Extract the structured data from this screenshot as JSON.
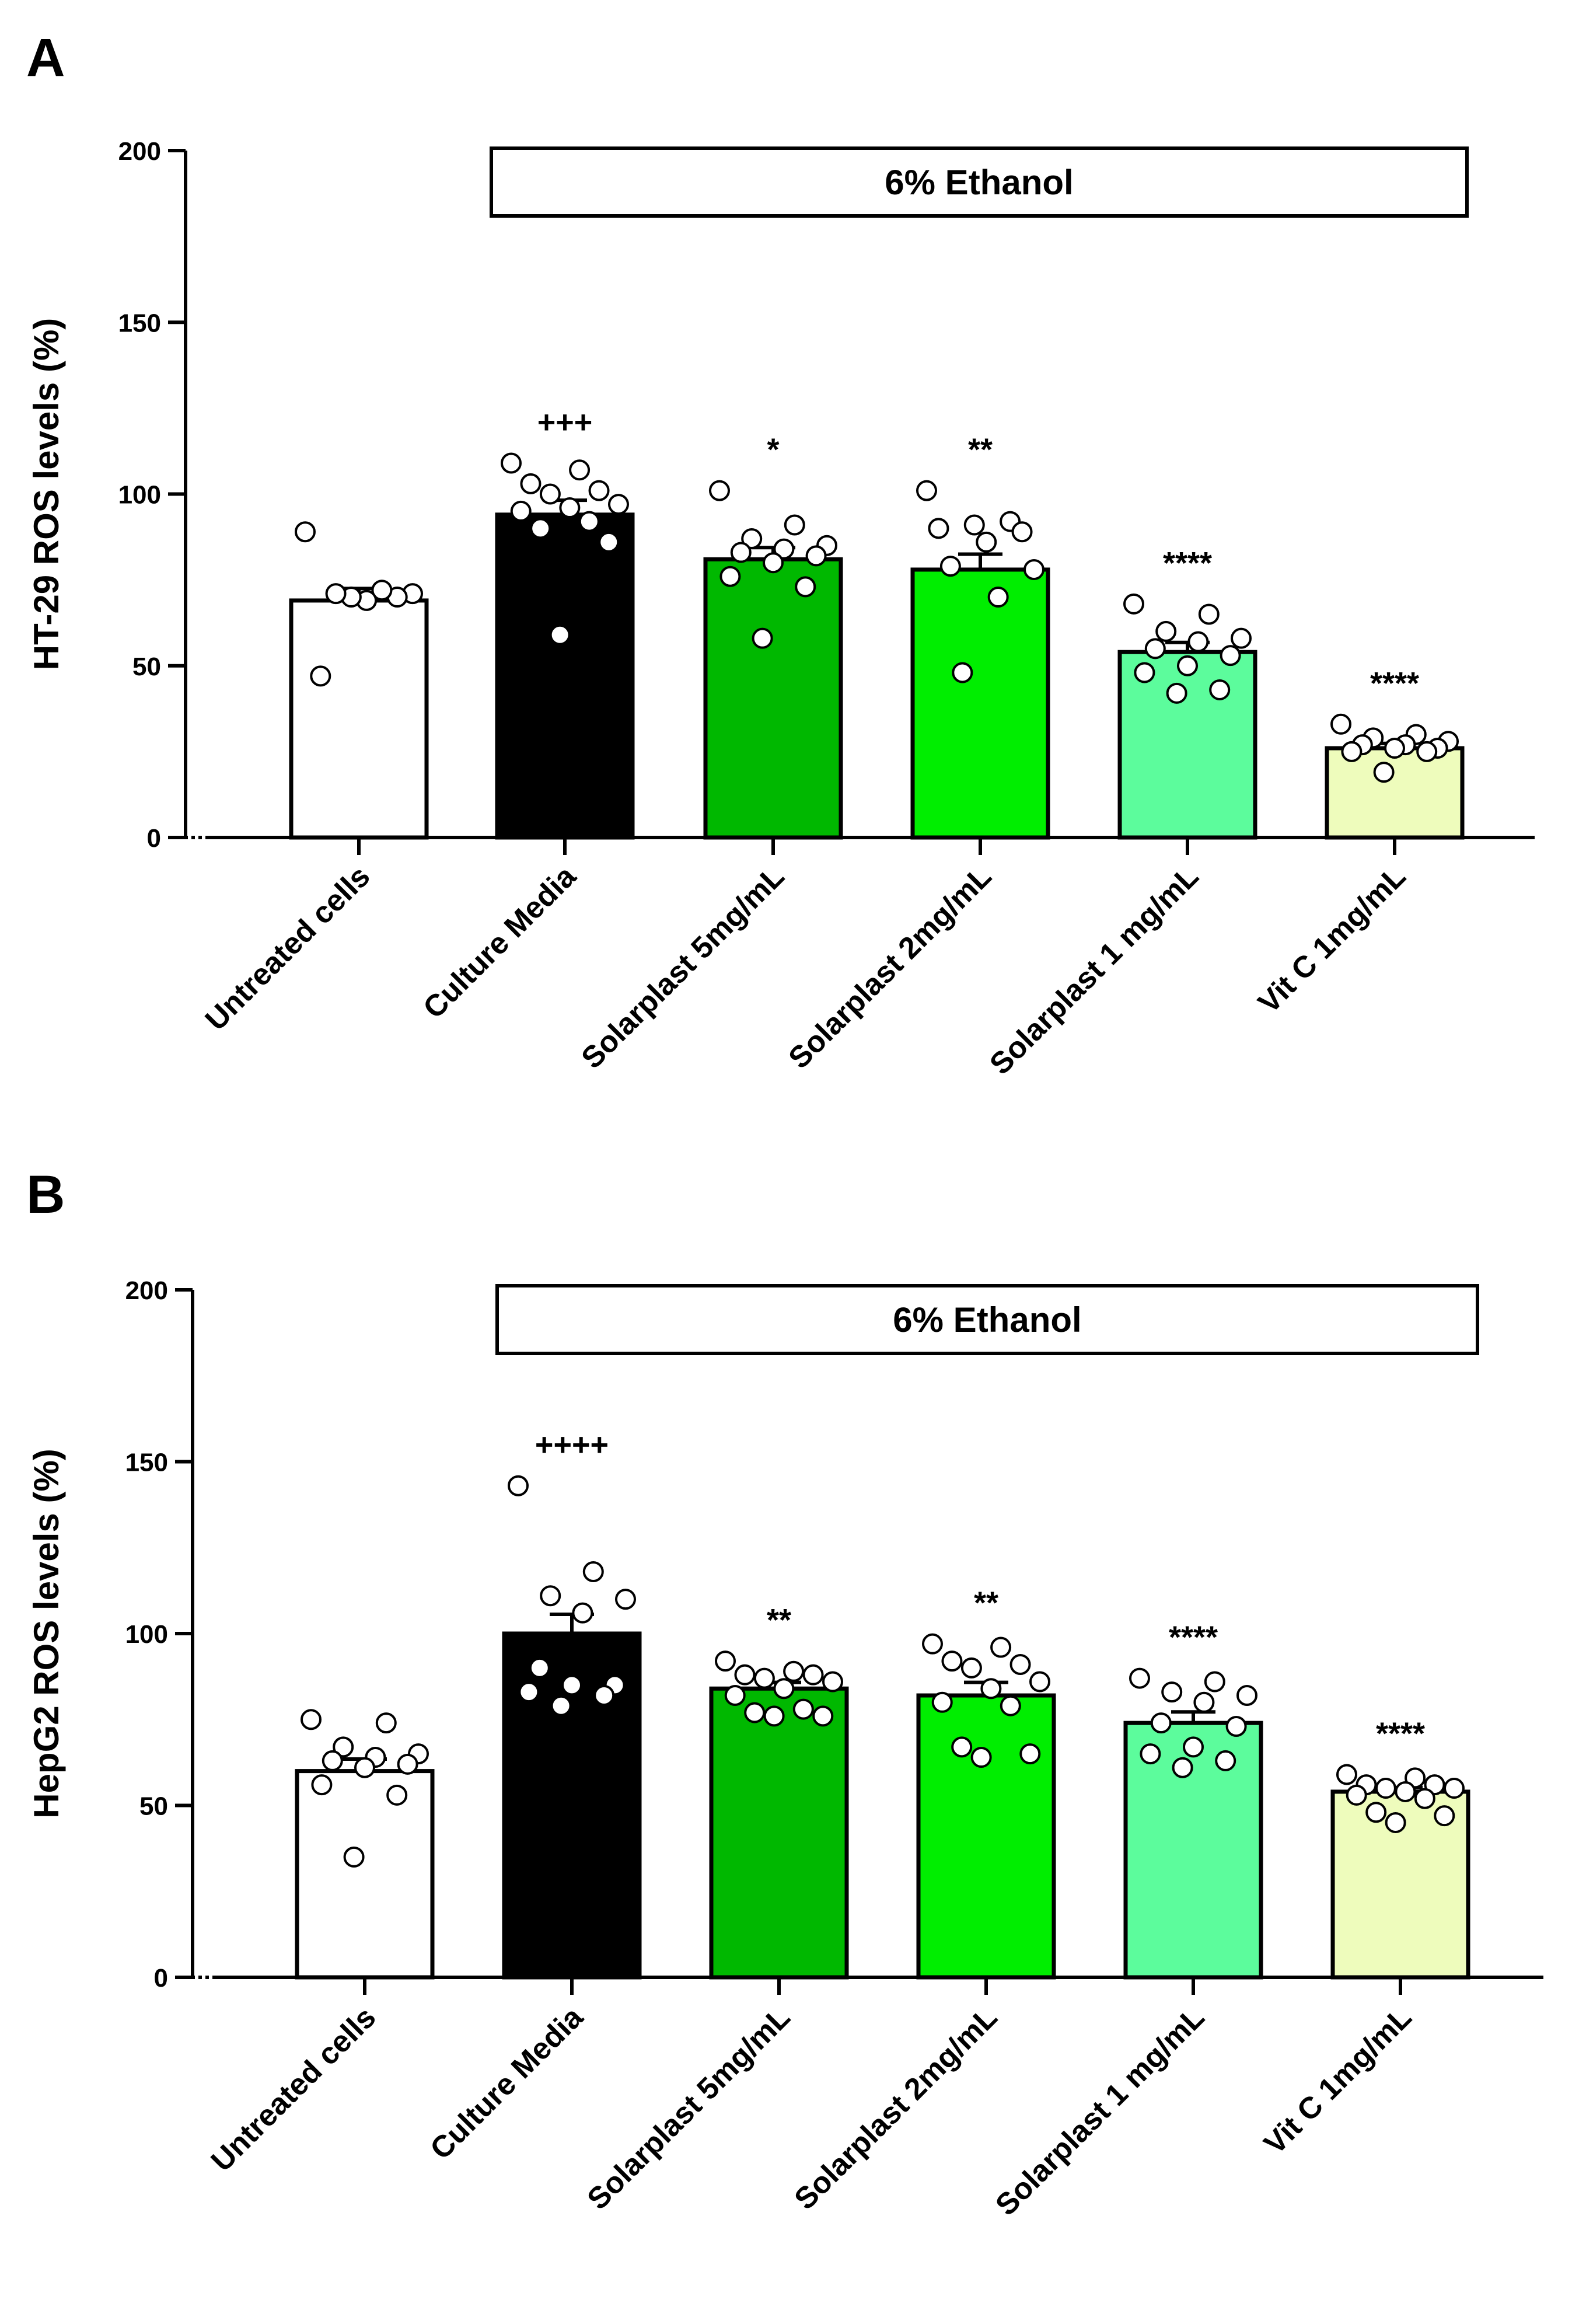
{
  "chart_data": [
    {
      "type": "bar",
      "panel": "A",
      "title": "",
      "xlabel": "",
      "ylabel": "HT-29 ROS levels (%)",
      "ylim": [
        0,
        200
      ],
      "yticks": [
        0,
        50,
        100,
        150,
        200
      ],
      "ytick_labels": [
        "0",
        "50",
        "100",
        "150",
        "200"
      ],
      "categories": [
        "Untreated cells",
        "Culture Media",
        "Solarplast 5mg/mL",
        "Solarplast 2mg/mL",
        "Solarplast  1 mg/mL",
        "Vit C 1mg/mL"
      ],
      "values": [
        69,
        94,
        81,
        78,
        54,
        26
      ],
      "errors": [
        3.5,
        4.2,
        3.4,
        4.5,
        2.8,
        1.4
      ],
      "colors": [
        "#ffffff",
        "#000000",
        "#00b800",
        "#00ee00",
        "#5cfc9c",
        "#eefcbc"
      ],
      "point_fill": [
        "#ffffff",
        "#ffffff",
        "#ffffff",
        "#ffffff",
        "#ffffff",
        "#ffffff"
      ],
      "significance": [
        "",
        "+++",
        "*",
        "**",
        "****",
        "****"
      ],
      "points": [
        [
          89,
          71,
          70,
          72,
          69,
          70,
          71,
          47
        ],
        [
          109,
          107,
          103,
          101,
          100,
          97,
          96,
          95,
          92,
          90,
          86,
          59
        ],
        [
          101,
          91,
          87,
          85,
          84,
          83,
          82,
          80,
          76,
          73,
          58
        ],
        [
          101,
          92,
          91,
          90,
          89,
          86,
          79,
          78,
          70,
          48
        ],
        [
          68,
          65,
          60,
          58,
          57,
          55,
          53,
          50,
          48,
          43,
          42
        ],
        [
          33,
          30,
          29,
          28,
          27,
          27,
          26,
          26,
          25,
          25,
          19
        ]
      ],
      "bracket": {
        "label": "6% Ethanol",
        "from_category": 1,
        "to_category": 5
      }
    },
    {
      "type": "bar",
      "panel": "B",
      "title": "",
      "xlabel": "",
      "ylabel": "HepG2 ROS levels  (%)",
      "ylim": [
        0,
        200
      ],
      "yticks": [
        0,
        50,
        100,
        150,
        200
      ],
      "ytick_labels": [
        "0",
        "50",
        "100",
        "150",
        "200"
      ],
      "categories": [
        "Untreated cells",
        "Culture Media",
        "Solarplast 5mg/mL",
        "Solarplast 2mg/mL",
        "Solarplast  1 mg/mL",
        "Vit C 1mg/mL"
      ],
      "values": [
        60,
        100,
        84,
        82,
        74,
        54
      ],
      "errors": [
        3.5,
        5.6,
        1.8,
        3.8,
        3.2,
        1.2
      ],
      "colors": [
        "#ffffff",
        "#000000",
        "#00b800",
        "#00ee00",
        "#5cfc9c",
        "#eefcbc"
      ],
      "point_fill": [
        "#ffffff",
        "#ffffff",
        "#ffffff",
        "#ffffff",
        "#ffffff",
        "#ffffff"
      ],
      "significance": [
        "",
        "++++",
        "**",
        "**",
        "****",
        "****"
      ],
      "points": [
        [
          75,
          74,
          67,
          65,
          64,
          63,
          62,
          61,
          56,
          53,
          35
        ],
        [
          143,
          118,
          111,
          110,
          106,
          90,
          85,
          85,
          83,
          82,
          79
        ],
        [
          92,
          89,
          88,
          88,
          87,
          86,
          84,
          82,
          78,
          77,
          76,
          76
        ],
        [
          97,
          96,
          92,
          91,
          90,
          86,
          84,
          80,
          79,
          67,
          65,
          64
        ],
        [
          87,
          86,
          83,
          82,
          80,
          74,
          73,
          67,
          65,
          63,
          61
        ],
        [
          59,
          58,
          56,
          56,
          55,
          55,
          54,
          53,
          52,
          48,
          47,
          45
        ]
      ],
      "bracket": {
        "label": "6% Ethanol",
        "from_category": 1,
        "to_category": 5
      }
    }
  ]
}
